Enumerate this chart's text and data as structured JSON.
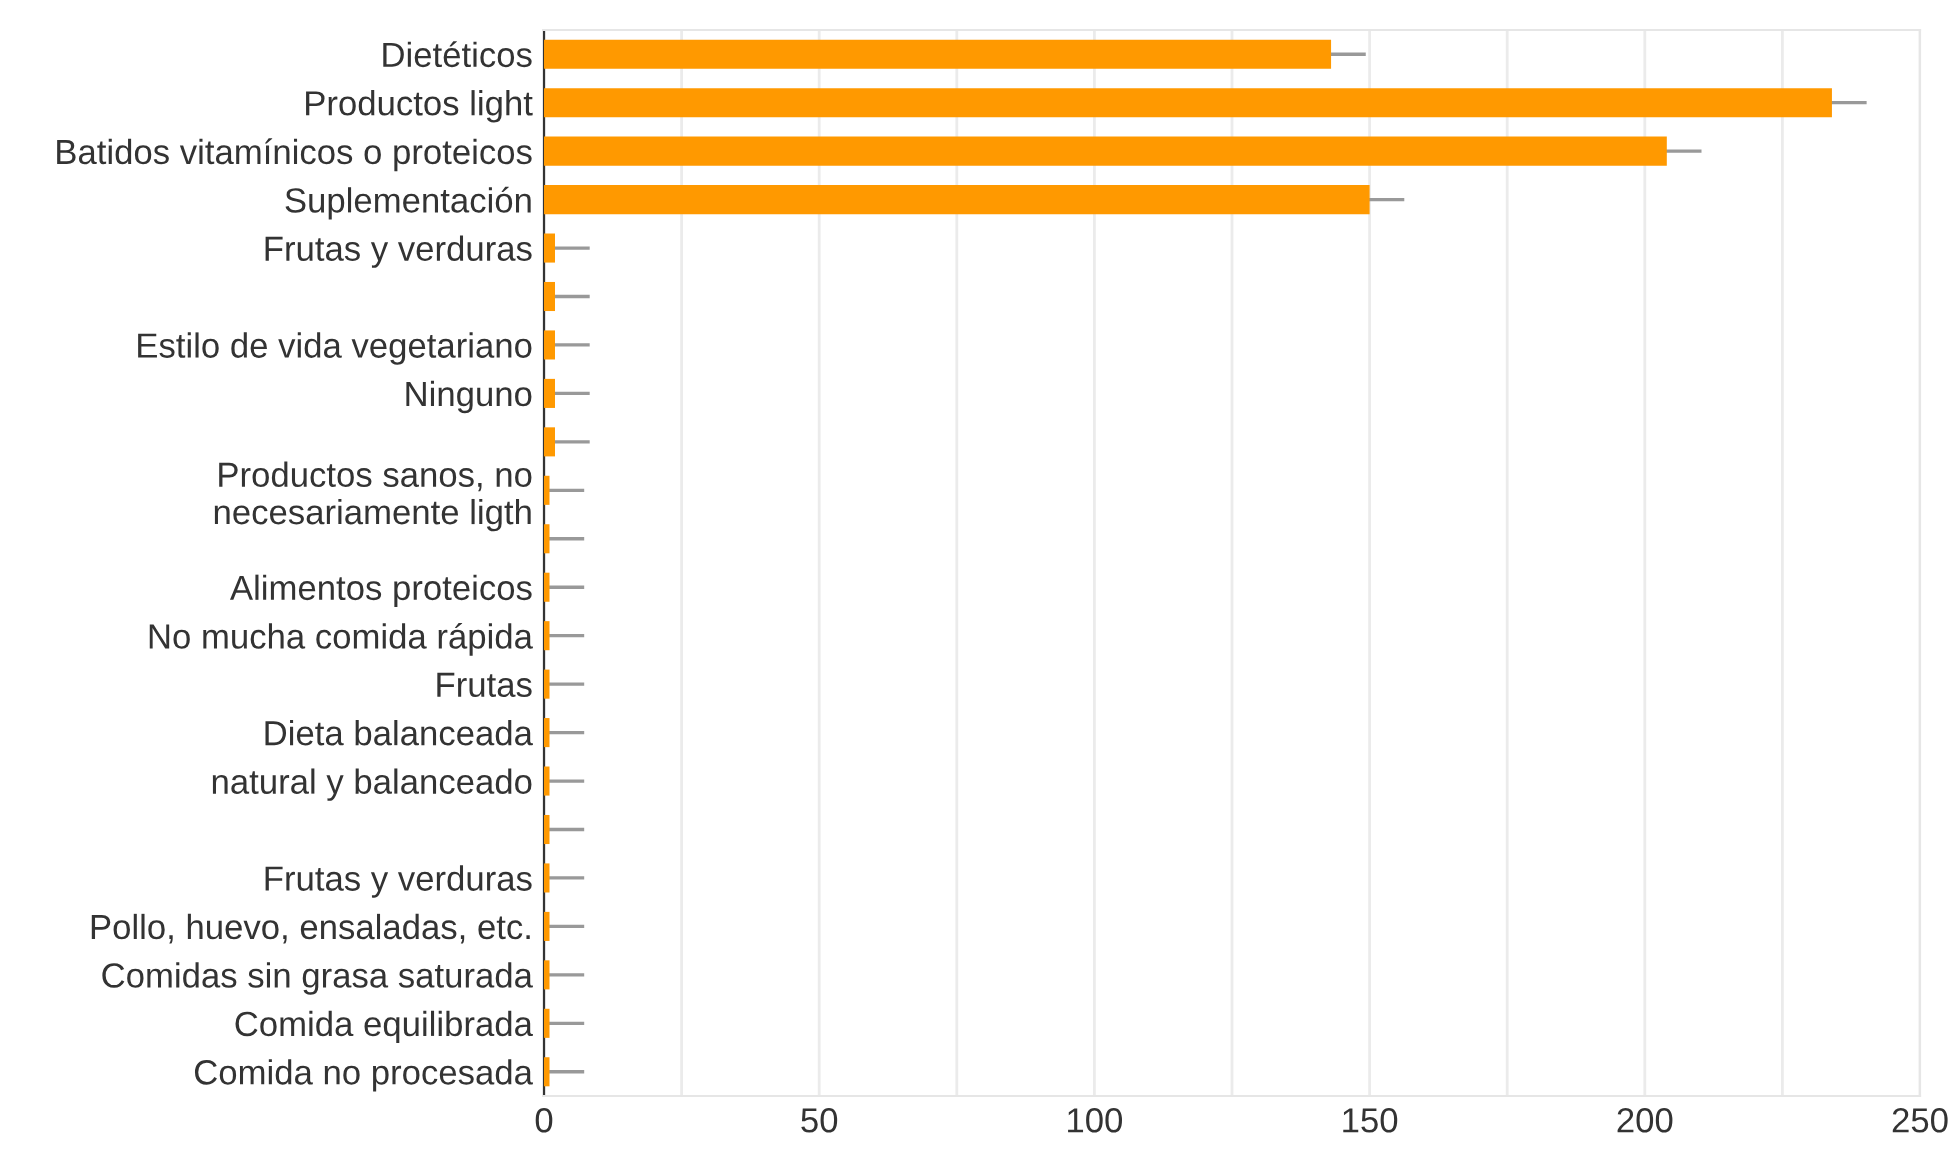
{
  "chart_data": {
    "type": "bar",
    "orientation": "horizontal",
    "categories": [
      "Dietéticos",
      "Productos light",
      "Batidos vitamínicos o proteicos",
      "Suplementación",
      "Frutas y verduras",
      null,
      "Estilo de vida vegetariano",
      "Ninguno",
      null,
      "Productos sanos, no\nnecesariamente ligth",
      null,
      "Alimentos proteicos",
      "No mucha comida rápida",
      "Frutas",
      "Dieta balanceada",
      "natural y balanceado",
      null,
      "Frutas y verduras",
      "Pollo, huevo, ensaladas, etc.",
      "Comidas sin grasa saturada",
      "Comida equilibrada",
      "Comida no procesada"
    ],
    "values": [
      143,
      234,
      204,
      150,
      2,
      2,
      2,
      2,
      2,
      1,
      1,
      1,
      1,
      1,
      1,
      1,
      1,
      1,
      1,
      1,
      1,
      1
    ],
    "errors": [
      [
        143,
        149
      ],
      [
        234,
        240
      ],
      [
        204,
        210
      ],
      [
        150,
        156
      ],
      [
        2,
        8
      ],
      [
        2,
        8
      ],
      [
        2,
        8
      ],
      [
        2,
        8
      ],
      [
        2,
        8
      ],
      [
        1,
        7
      ],
      [
        1,
        7
      ],
      [
        1,
        7
      ],
      [
        1,
        7
      ],
      [
        1,
        7
      ],
      [
        1,
        7
      ],
      [
        1,
        7
      ],
      [
        1,
        7
      ],
      [
        1,
        7
      ],
      [
        1,
        7
      ],
      [
        1,
        7
      ],
      [
        1,
        7
      ],
      [
        1,
        7
      ]
    ],
    "color": "#ff9900",
    "xlim": [
      0,
      250
    ],
    "xticks": [
      0,
      {
        "value": 25,
        "label": null
      },
      50,
      {
        "value": 75,
        "label": null
      },
      100,
      {
        "value": 125,
        "label": null
      },
      150,
      {
        "value": 175,
        "label": null
      },
      200,
      {
        "value": 225,
        "label": null
      },
      250
    ],
    "grid": "x"
  }
}
